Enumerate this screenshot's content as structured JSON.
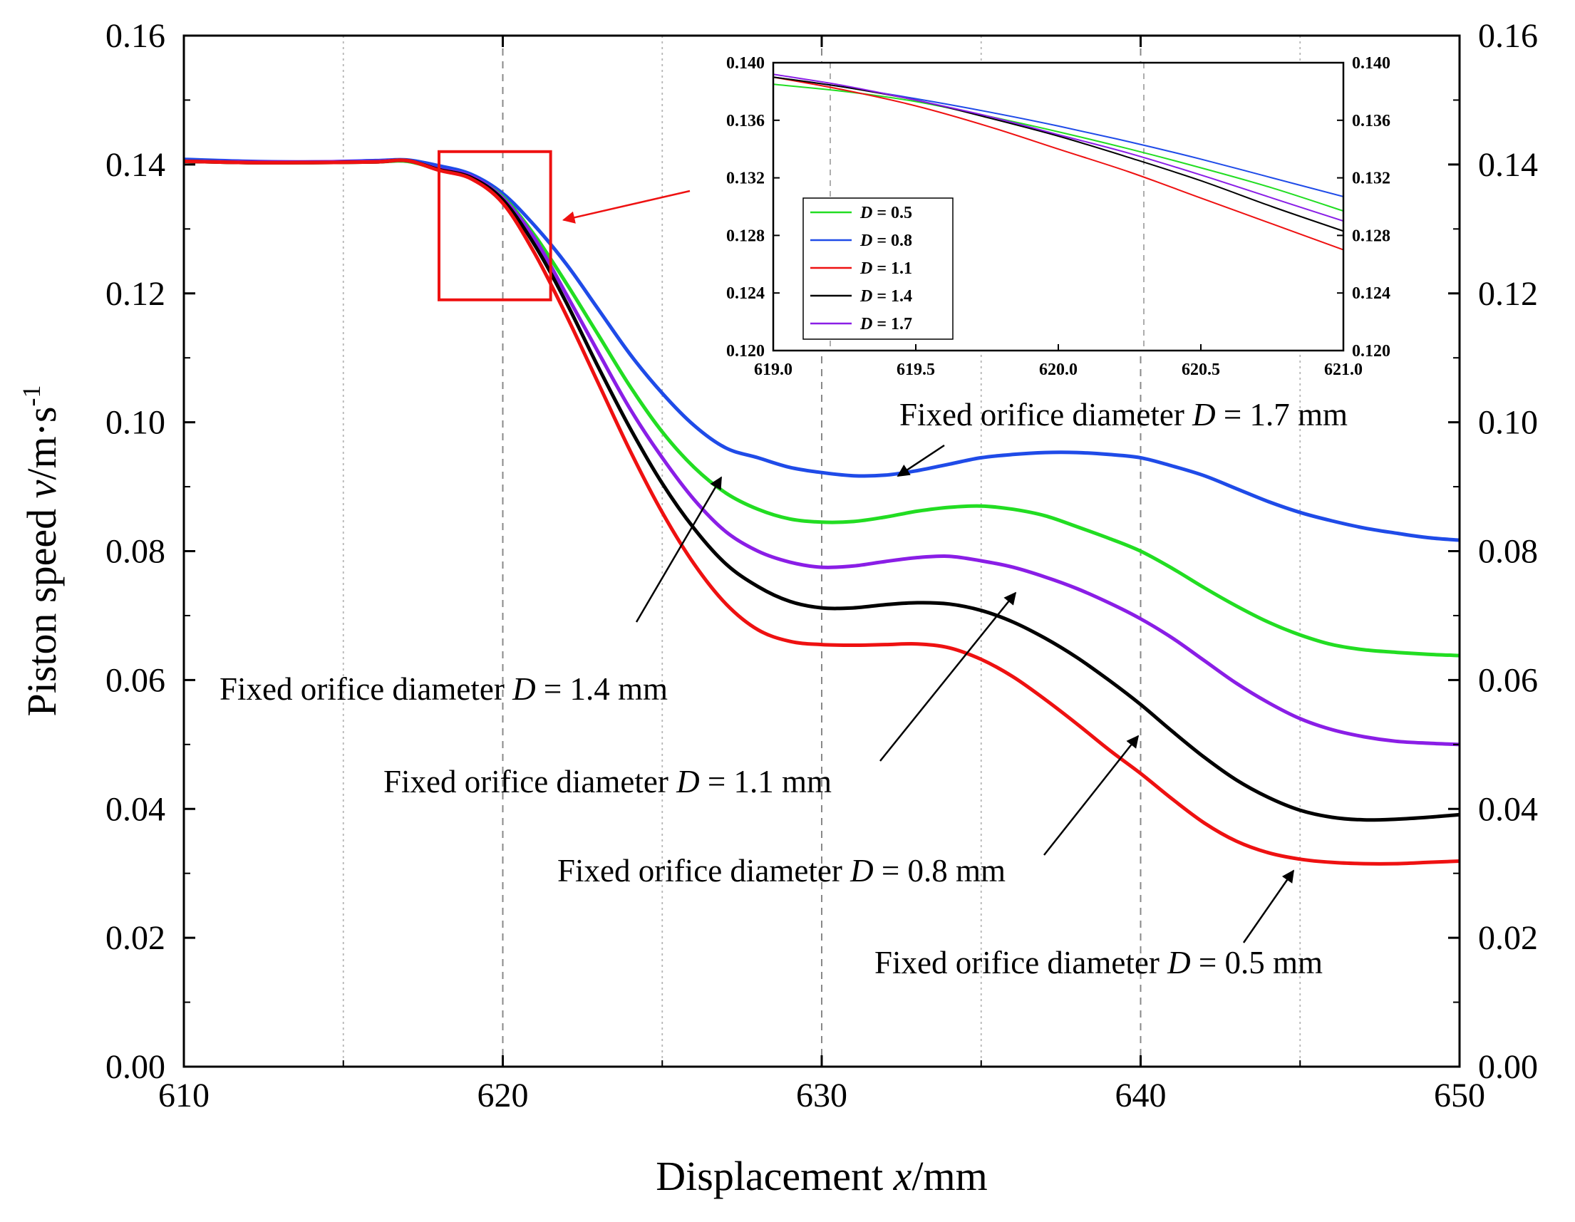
{
  "chart_data": {
    "type": "line",
    "main": {
      "xlabel": {
        "text": "Displacement",
        "var": "x",
        "unit": "/mm"
      },
      "ylabel": {
        "text": "Piston speed",
        "var": "v",
        "unit": "/m·s",
        "sup": "-1"
      },
      "xlim": [
        610,
        650
      ],
      "ylim": [
        0.0,
        0.16
      ],
      "xticks": [
        610,
        620,
        630,
        640,
        650
      ],
      "xtick_labels": [
        "610",
        "620",
        "630",
        "640",
        "650"
      ],
      "yticks": [
        0.0,
        0.02,
        0.04,
        0.06,
        0.08,
        0.1,
        0.12,
        0.14,
        0.16
      ],
      "ytick_labels": [
        "0.00",
        "0.02",
        "0.04",
        "0.06",
        "0.08",
        "0.10",
        "0.12",
        "0.14",
        "0.16"
      ],
      "right_axis_mirrored": true,
      "grid": {
        "x_major_dashed": [
          620,
          630,
          640
        ],
        "x_minor_dotted": [
          615,
          625,
          635,
          645
        ]
      },
      "zoom_box": {
        "x": [
          618.0,
          621.5
        ],
        "y": [
          0.119,
          0.142
        ]
      },
      "series": [
        {
          "name": "D = 1.7",
          "color": "#1f4be8",
          "x": [
            610,
            612,
            614,
            616,
            617,
            618,
            619,
            620,
            621,
            622,
            623,
            624,
            625,
            626,
            627,
            628,
            629,
            630,
            631,
            632,
            633,
            634,
            635,
            636,
            637,
            638,
            639,
            640,
            641,
            642,
            643,
            644,
            645,
            646,
            647,
            648,
            649,
            650
          ],
          "y": [
            0.1408,
            0.1405,
            0.1404,
            0.1406,
            0.1407,
            0.1398,
            0.1385,
            0.1355,
            0.1305,
            0.1245,
            0.1175,
            0.1105,
            0.1045,
            0.0995,
            0.096,
            0.0945,
            0.093,
            0.0922,
            0.0917,
            0.0918,
            0.0925,
            0.0935,
            0.0945,
            0.095,
            0.0953,
            0.0953,
            0.095,
            0.0945,
            0.0932,
            0.0917,
            0.0897,
            0.0877,
            0.086,
            0.0847,
            0.0836,
            0.0828,
            0.0821,
            0.0817
          ]
        },
        {
          "name": "D = 1.4",
          "color": "#22dd22",
          "x": [
            610,
            612,
            614,
            616,
            617,
            618,
            619,
            620,
            621,
            622,
            623,
            624,
            625,
            626,
            627,
            628,
            629,
            630,
            631,
            632,
            633,
            634,
            635,
            636,
            637,
            638,
            639,
            640,
            641,
            642,
            643,
            644,
            645,
            646,
            647,
            648,
            649,
            650
          ],
          "y": [
            0.1405,
            0.1403,
            0.1403,
            0.1404,
            0.1405,
            0.1392,
            0.138,
            0.135,
            0.129,
            0.1215,
            0.1135,
            0.1055,
            0.0985,
            0.093,
            0.089,
            0.0865,
            0.085,
            0.0845,
            0.0846,
            0.0853,
            0.0862,
            0.0868,
            0.087,
            0.0865,
            0.0855,
            0.0838,
            0.082,
            0.08,
            0.0773,
            0.0743,
            0.0715,
            0.069,
            0.067,
            0.0655,
            0.0647,
            0.0643,
            0.064,
            0.0638
          ]
        },
        {
          "name": "D = 1.1",
          "color": "#8a1ee6",
          "x": [
            610,
            612,
            614,
            616,
            617,
            618,
            619,
            620,
            621,
            622,
            623,
            624,
            625,
            626,
            627,
            628,
            629,
            630,
            631,
            632,
            633,
            634,
            635,
            636,
            637,
            638,
            639,
            640,
            641,
            642,
            643,
            644,
            645,
            646,
            647,
            648,
            649,
            650
          ],
          "y": [
            0.1405,
            0.1404,
            0.1404,
            0.1405,
            0.1406,
            0.1393,
            0.1382,
            0.1348,
            0.1285,
            0.1198,
            0.1108,
            0.102,
            0.0945,
            0.088,
            0.083,
            0.08,
            0.0783,
            0.0775,
            0.0777,
            0.0784,
            0.079,
            0.0792,
            0.0785,
            0.0775,
            0.076,
            0.0742,
            0.072,
            0.0695,
            0.0665,
            0.063,
            0.0595,
            0.0565,
            0.054,
            0.0523,
            0.0512,
            0.0505,
            0.0502,
            0.05
          ]
        },
        {
          "name": "D = 0.8",
          "color": "#000000",
          "x": [
            610,
            612,
            614,
            616,
            617,
            618,
            619,
            620,
            621,
            622,
            623,
            624,
            625,
            626,
            627,
            628,
            629,
            630,
            631,
            632,
            633,
            634,
            635,
            636,
            637,
            638,
            639,
            640,
            641,
            642,
            643,
            644,
            645,
            646,
            647,
            648,
            649,
            650
          ],
          "y": [
            0.1405,
            0.1403,
            0.1403,
            0.1404,
            0.1406,
            0.1392,
            0.138,
            0.1345,
            0.1275,
            0.1185,
            0.1085,
            0.099,
            0.0905,
            0.0835,
            0.078,
            0.0745,
            0.0722,
            0.0712,
            0.0712,
            0.0717,
            0.072,
            0.0718,
            0.0708,
            0.069,
            0.0665,
            0.0635,
            0.06,
            0.0562,
            0.052,
            0.048,
            0.0445,
            0.0418,
            0.0398,
            0.0387,
            0.0383,
            0.0384,
            0.0387,
            0.0391
          ]
        },
        {
          "name": "D = 0.5",
          "color": "#ee1111",
          "x": [
            610,
            612,
            614,
            616,
            617,
            618,
            619,
            620,
            621,
            622,
            623,
            624,
            625,
            626,
            627,
            628,
            629,
            630,
            631,
            632,
            633,
            634,
            635,
            636,
            637,
            638,
            639,
            640,
            641,
            642,
            643,
            644,
            645,
            646,
            647,
            648,
            649,
            650
          ],
          "y": [
            0.1405,
            0.1403,
            0.1403,
            0.1404,
            0.1406,
            0.1391,
            0.1378,
            0.134,
            0.1262,
            0.1165,
            0.106,
            0.0955,
            0.086,
            0.078,
            0.0718,
            0.0678,
            0.066,
            0.0655,
            0.0654,
            0.0655,
            0.0656,
            0.065,
            0.0632,
            0.0605,
            0.057,
            0.0532,
            0.0492,
            0.0455,
            0.0415,
            0.0378,
            0.035,
            0.0332,
            0.0322,
            0.0317,
            0.0315,
            0.0315,
            0.0317,
            0.0319
          ]
        }
      ],
      "annotations": [
        {
          "prefix": "Fixed orifice diameter ",
          "var": "D",
          "suffix": " = 1.7 mm"
        },
        {
          "prefix": "Fixed orifice diameter ",
          "var": "D",
          "suffix": " = 1.4 mm"
        },
        {
          "prefix": "Fixed orifice diameter ",
          "var": "D",
          "suffix": " = 1.1 mm"
        },
        {
          "prefix": "Fixed orifice diameter ",
          "var": "D",
          "suffix": " = 0.8 mm"
        },
        {
          "prefix": "Fixed orifice diameter ",
          "var": "D",
          "suffix": " = 0.5 mm"
        }
      ]
    },
    "inset": {
      "xlim": [
        619.0,
        621.0
      ],
      "ylim": [
        0.12,
        0.14
      ],
      "xticks": [
        619.0,
        619.5,
        620.0,
        620.5,
        621.0
      ],
      "xtick_labels": [
        "619.0",
        "619.5",
        "620.0",
        "620.5",
        "621.0"
      ],
      "yticks": [
        0.12,
        0.124,
        0.128,
        0.132,
        0.136,
        0.14
      ],
      "ytick_labels": [
        "0.120",
        "0.124",
        "0.128",
        "0.132",
        "0.136",
        "0.140"
      ],
      "grid": {
        "x_dashed": [
          619.2,
          620.3
        ]
      },
      "legend": [
        {
          "var": "D",
          "label": " = 0.5",
          "color": "#22dd22"
        },
        {
          "var": "D",
          "label": " = 0.8",
          "color": "#1f4be8"
        },
        {
          "var": "D",
          "label": " = 1.1",
          "color": "#ee1111"
        },
        {
          "var": "D",
          "label": " = 1.4",
          "color": "#000000"
        },
        {
          "var": "D",
          "label": " = 1.7",
          "color": "#8a1ee6"
        }
      ],
      "series": [
        {
          "name": "D = 0.5",
          "color": "#22dd22",
          "x": [
            619.0,
            619.25,
            619.5,
            619.75,
            620.0,
            620.25,
            620.5,
            620.75,
            621.0
          ],
          "y": [
            0.1385,
            0.138,
            0.1373,
            0.1363,
            0.1352,
            0.134,
            0.1327,
            0.1313,
            0.1297
          ]
        },
        {
          "name": "D = 0.8",
          "color": "#1f4be8",
          "x": [
            619.0,
            619.25,
            619.5,
            619.75,
            620.0,
            620.25,
            620.5,
            620.75,
            621.0
          ],
          "y": [
            0.139,
            0.1383,
            0.1375,
            0.1366,
            0.1356,
            0.1345,
            0.1333,
            0.132,
            0.1307
          ]
        },
        {
          "name": "D = 1.1",
          "color": "#ee1111",
          "x": [
            619.0,
            619.25,
            619.5,
            619.75,
            620.0,
            620.25,
            620.5,
            620.75,
            621.0
          ],
          "y": [
            0.139,
            0.1381,
            0.137,
            0.1356,
            0.134,
            0.1324,
            0.1306,
            0.1288,
            0.127
          ]
        },
        {
          "name": "D = 1.4",
          "color": "#000000",
          "x": [
            619.0,
            619.25,
            619.5,
            619.75,
            620.0,
            620.25,
            620.5,
            620.75,
            621.0
          ],
          "y": [
            0.139,
            0.1383,
            0.1374,
            0.1362,
            0.1349,
            0.1334,
            0.1318,
            0.13,
            0.1283
          ]
        },
        {
          "name": "D = 1.7",
          "color": "#8a1ee6",
          "x": [
            619.0,
            619.25,
            619.5,
            619.75,
            620.0,
            620.25,
            620.5,
            620.75,
            621.0
          ],
          "y": [
            0.1392,
            0.1384,
            0.1374,
            0.1363,
            0.135,
            0.1337,
            0.1322,
            0.1306,
            0.129
          ]
        }
      ]
    }
  }
}
